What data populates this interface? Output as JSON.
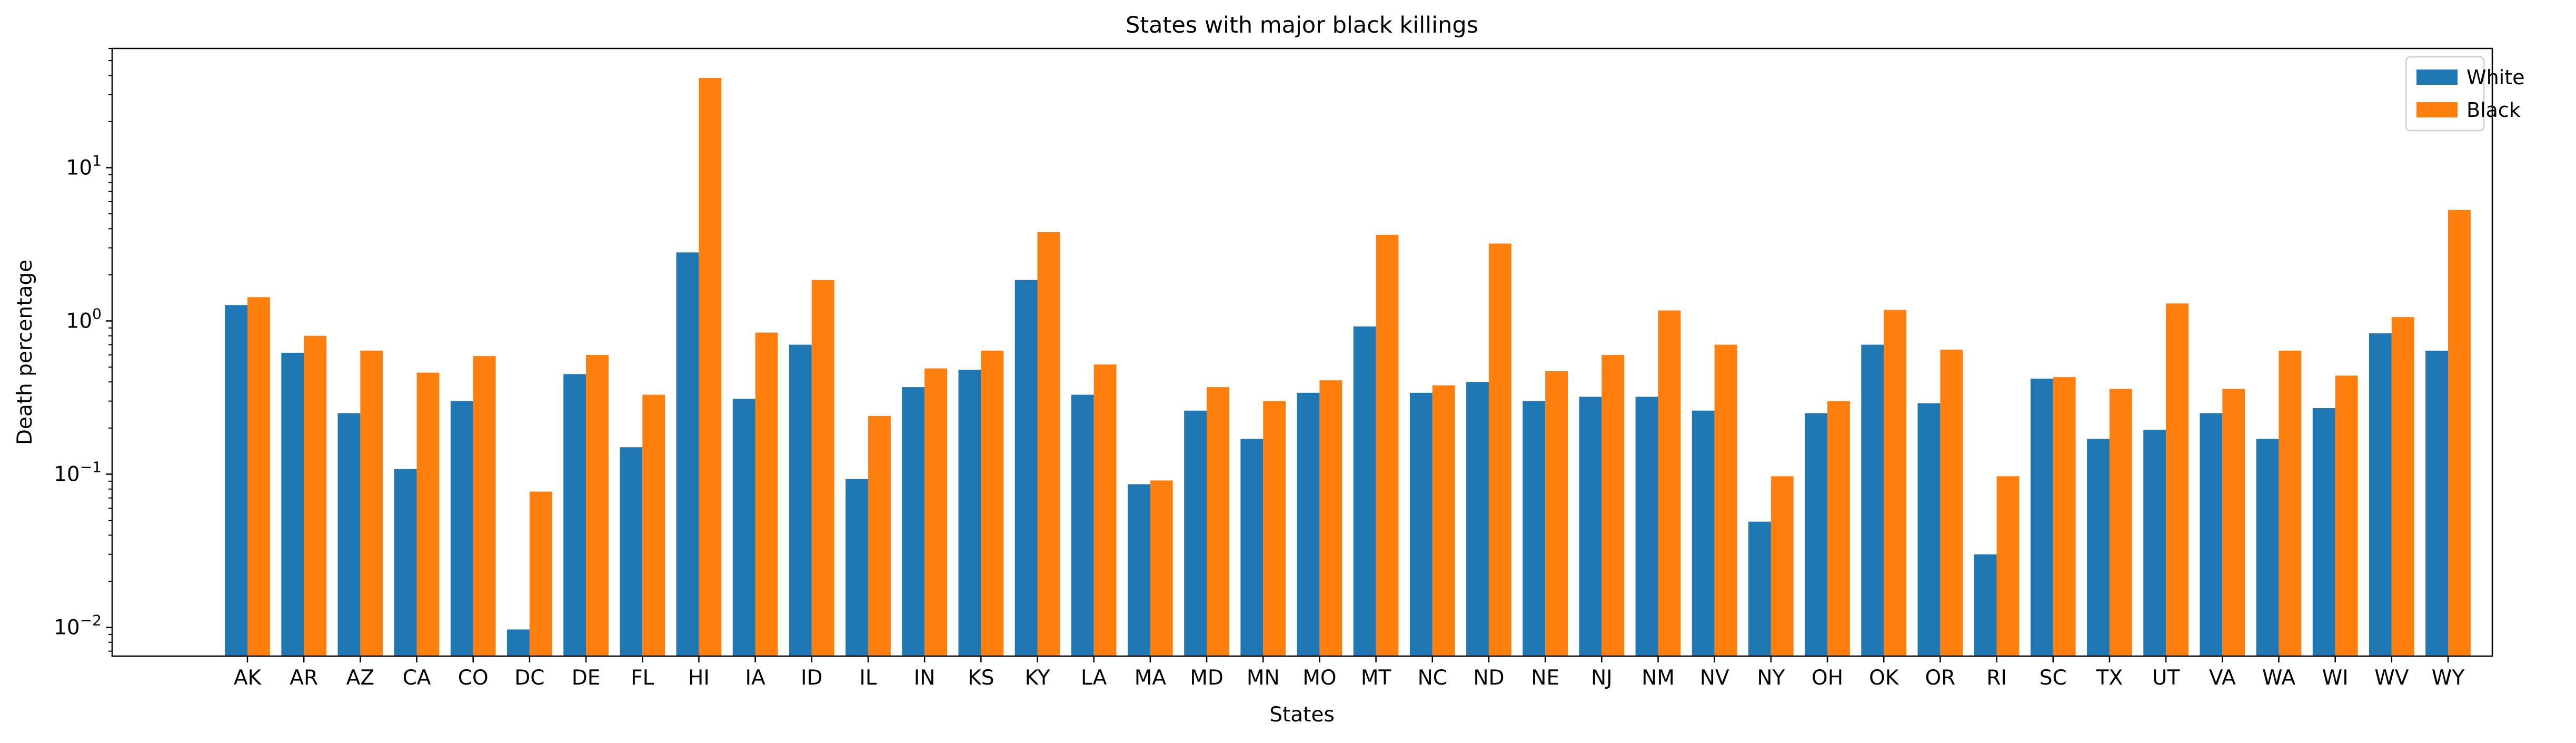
{
  "chart_data": {
    "type": "bar",
    "title": "States with major black killings",
    "xlabel": "States",
    "ylabel": "Death percentage",
    "yscale": "log",
    "ylim": [
      0.0065,
      60
    ],
    "yticks": [
      {
        "value": 0.01,
        "base": "10",
        "exp": "−2"
      },
      {
        "value": 0.1,
        "base": "10",
        "exp": "−1"
      },
      {
        "value": 1,
        "base": "10",
        "exp": "0"
      },
      {
        "value": 10,
        "base": "10",
        "exp": "1"
      }
    ],
    "grid": false,
    "legend_position": "top-right",
    "categories": [
      "AK",
      "AR",
      "AZ",
      "CA",
      "CO",
      "DC",
      "DE",
      "FL",
      "HI",
      "IA",
      "ID",
      "IL",
      "IN",
      "KS",
      "KY",
      "LA",
      "MA",
      "MD",
      "MN",
      "MO",
      "MT",
      "NC",
      "ND",
      "NE",
      "NJ",
      "NM",
      "NV",
      "NY",
      "OH",
      "OK",
      "OR",
      "RI",
      "SC",
      "TX",
      "UT",
      "VA",
      "WA",
      "WI",
      "WV",
      "WY"
    ],
    "series": [
      {
        "name": "White",
        "color": "#1f77b4",
        "values": [
          1.27,
          0.62,
          0.25,
          0.108,
          0.3,
          0.0097,
          0.45,
          0.15,
          2.8,
          0.31,
          0.7,
          0.093,
          0.37,
          0.48,
          1.85,
          0.33,
          0.086,
          0.26,
          0.17,
          0.34,
          0.92,
          0.34,
          0.4,
          0.3,
          0.32,
          0.32,
          0.26,
          0.049,
          0.25,
          0.7,
          0.29,
          0.03,
          0.42,
          0.17,
          0.195,
          0.25,
          0.17,
          0.27,
          0.83,
          0.64
        ]
      },
      {
        "name": "Black",
        "color": "#ff7f0e",
        "values": [
          1.43,
          0.8,
          0.64,
          0.46,
          0.59,
          0.077,
          0.6,
          0.33,
          38.5,
          0.84,
          1.85,
          0.24,
          0.49,
          0.64,
          3.8,
          0.52,
          0.091,
          0.37,
          0.3,
          0.41,
          3.65,
          0.38,
          3.2,
          0.47,
          0.6,
          1.17,
          0.7,
          0.097,
          0.3,
          1.18,
          0.65,
          0.097,
          0.43,
          0.36,
          1.3,
          0.36,
          0.64,
          0.44,
          1.06,
          5.3
        ]
      }
    ]
  }
}
